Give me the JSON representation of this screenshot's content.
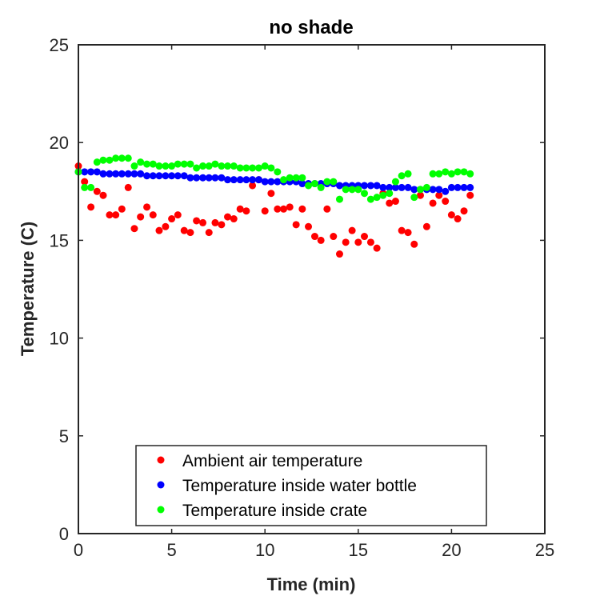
{
  "chart_data": {
    "type": "scatter",
    "title": "no shade",
    "xlabel": "Time (min)",
    "ylabel": "Temperature (C)",
    "xlim": [
      0,
      25
    ],
    "ylim": [
      0,
      25
    ],
    "xticks": [
      0,
      5,
      10,
      15,
      20,
      25
    ],
    "yticks": [
      0,
      5,
      10,
      15,
      20,
      25
    ],
    "grid": false,
    "legend_position": "bottom-center",
    "series": [
      {
        "name": "Ambient air temperature",
        "color": "#ff0000",
        "x": [
          0.0,
          0.33,
          0.67,
          1.0,
          1.33,
          1.67,
          2.0,
          2.33,
          2.67,
          3.0,
          3.33,
          3.67,
          4.0,
          4.33,
          4.67,
          5.0,
          5.33,
          5.67,
          6.0,
          6.33,
          6.67,
          7.0,
          7.33,
          7.67,
          8.0,
          8.33,
          8.67,
          9.0,
          9.33,
          9.67,
          10.0,
          10.33,
          10.67,
          11.0,
          11.33,
          11.67,
          12.0,
          12.33,
          12.67,
          13.0,
          13.33,
          13.67,
          14.0,
          14.33,
          14.67,
          15.0,
          15.33,
          15.67,
          16.0,
          16.33,
          16.67,
          17.0,
          17.33,
          17.67,
          18.0,
          18.33,
          18.67,
          19.0,
          19.33,
          19.67,
          20.0,
          20.33,
          20.67,
          21.0
        ],
        "y": [
          18.8,
          18.0,
          16.7,
          17.5,
          17.3,
          16.3,
          16.3,
          16.6,
          17.7,
          15.6,
          16.2,
          16.7,
          16.3,
          15.5,
          15.7,
          16.1,
          16.3,
          15.5,
          15.4,
          16.0,
          15.9,
          15.4,
          15.9,
          15.8,
          16.2,
          16.1,
          16.6,
          16.5,
          17.8,
          18.1,
          16.5,
          17.4,
          16.6,
          16.6,
          16.7,
          15.8,
          16.6,
          15.7,
          15.2,
          15.0,
          16.6,
          15.2,
          14.3,
          14.9,
          15.5,
          14.9,
          15.2,
          14.9,
          14.6,
          17.4,
          16.9,
          17.0,
          15.5,
          15.4,
          14.8,
          17.3,
          15.7,
          16.9,
          17.3,
          17.0,
          16.3,
          16.1,
          16.5,
          17.3
        ]
      },
      {
        "name": "Temperature inside water bottle",
        "color": "#0000ff",
        "x": [
          0.0,
          0.33,
          0.67,
          1.0,
          1.33,
          1.67,
          2.0,
          2.33,
          2.67,
          3.0,
          3.33,
          3.67,
          4.0,
          4.33,
          4.67,
          5.0,
          5.33,
          5.67,
          6.0,
          6.33,
          6.67,
          7.0,
          7.33,
          7.67,
          8.0,
          8.33,
          8.67,
          9.0,
          9.33,
          9.67,
          10.0,
          10.33,
          10.67,
          11.0,
          11.33,
          11.67,
          12.0,
          12.33,
          12.67,
          13.0,
          13.33,
          13.67,
          14.0,
          14.33,
          14.67,
          15.0,
          15.33,
          15.67,
          16.0,
          16.33,
          16.67,
          17.0,
          17.33,
          17.67,
          18.0,
          18.33,
          18.67,
          19.0,
          19.33,
          19.67,
          20.0,
          20.33,
          20.67,
          21.0
        ],
        "y": [
          18.5,
          18.5,
          18.5,
          18.5,
          18.4,
          18.4,
          18.4,
          18.4,
          18.4,
          18.4,
          18.4,
          18.3,
          18.3,
          18.3,
          18.3,
          18.3,
          18.3,
          18.3,
          18.2,
          18.2,
          18.2,
          18.2,
          18.2,
          18.2,
          18.1,
          18.1,
          18.1,
          18.1,
          18.1,
          18.1,
          18.0,
          18.0,
          18.0,
          18.0,
          18.0,
          18.0,
          17.9,
          17.9,
          17.9,
          17.9,
          17.9,
          17.9,
          17.8,
          17.8,
          17.8,
          17.8,
          17.8,
          17.8,
          17.8,
          17.7,
          17.7,
          17.7,
          17.7,
          17.7,
          17.6,
          17.6,
          17.6,
          17.6,
          17.6,
          17.5,
          17.7,
          17.7,
          17.7,
          17.7
        ]
      },
      {
        "name": "Temperature inside crate",
        "color": "#00ff00",
        "x": [
          0.0,
          0.33,
          0.67,
          1.0,
          1.33,
          1.67,
          2.0,
          2.33,
          2.67,
          3.0,
          3.33,
          3.67,
          4.0,
          4.33,
          4.67,
          5.0,
          5.33,
          5.67,
          6.0,
          6.33,
          6.67,
          7.0,
          7.33,
          7.67,
          8.0,
          8.33,
          8.67,
          9.0,
          9.33,
          9.67,
          10.0,
          10.33,
          10.67,
          11.0,
          11.33,
          11.67,
          12.0,
          12.33,
          12.67,
          13.0,
          13.33,
          13.67,
          14.0,
          14.33,
          14.67,
          15.0,
          15.33,
          15.67,
          16.0,
          16.33,
          16.67,
          17.0,
          17.33,
          17.67,
          18.0,
          18.33,
          18.67,
          19.0,
          19.33,
          19.67,
          20.0,
          20.33,
          20.67,
          21.0
        ],
        "y": [
          18.5,
          17.7,
          17.7,
          19.0,
          19.1,
          19.1,
          19.2,
          19.2,
          19.2,
          18.8,
          19.0,
          18.9,
          18.9,
          18.8,
          18.8,
          18.8,
          18.9,
          18.9,
          18.9,
          18.7,
          18.8,
          18.8,
          18.9,
          18.8,
          18.8,
          18.8,
          18.7,
          18.7,
          18.7,
          18.7,
          18.8,
          18.7,
          18.5,
          18.1,
          18.2,
          18.2,
          18.2,
          17.8,
          17.9,
          17.7,
          18.0,
          18.0,
          17.1,
          17.6,
          17.6,
          17.6,
          17.4,
          17.1,
          17.2,
          17.3,
          17.4,
          18.0,
          18.3,
          18.4,
          17.2,
          17.6,
          17.7,
          18.4,
          18.4,
          18.5,
          18.4,
          18.5,
          18.5,
          18.4
        ]
      }
    ]
  }
}
